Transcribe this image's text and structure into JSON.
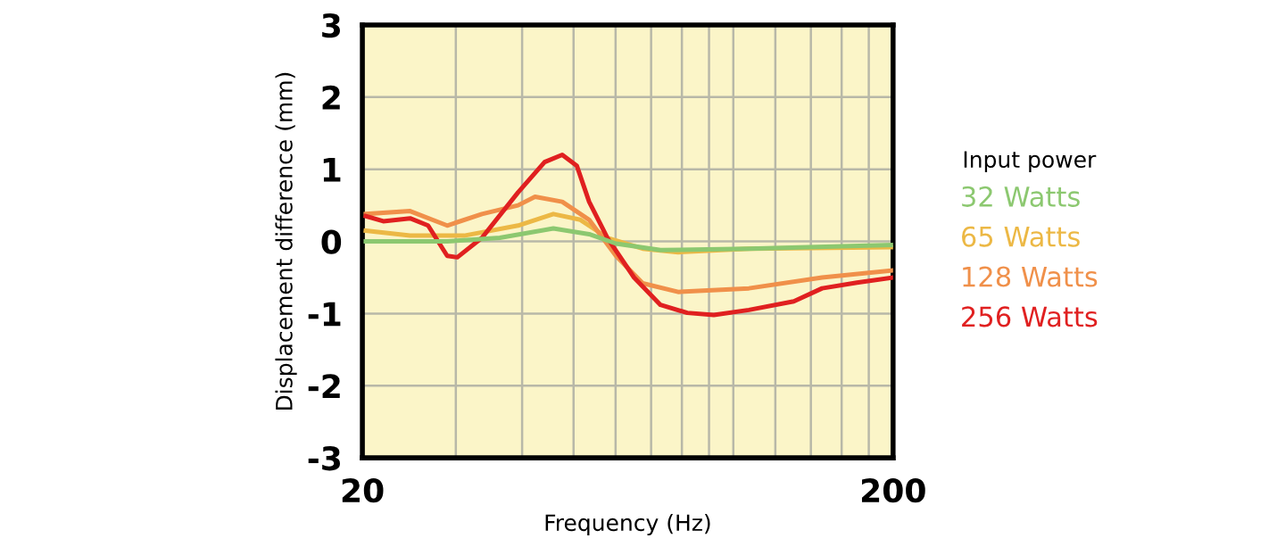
{
  "chart_data": {
    "type": "line",
    "xlabel": "Frequency (Hz)",
    "ylabel": "Displacement difference (mm)",
    "legend_title": "Input power",
    "legend": "right",
    "log": "x",
    "grid": true,
    "marker": "none",
    "line_style": "solid",
    "xlim": [
      20,
      200
    ],
    "xticks": [
      20,
      {
        "value": 30,
        "label": null
      },
      {
        "value": 40,
        "label": null
      },
      {
        "value": 50,
        "label": null
      },
      {
        "value": 60,
        "label": null
      },
      {
        "value": 70,
        "label": null
      },
      {
        "value": 80,
        "label": null
      },
      {
        "value": 90,
        "label": null
      },
      {
        "value": 100,
        "label": null
      },
      {
        "value": 120,
        "label": null
      },
      {
        "value": 140,
        "label": null
      },
      {
        "value": 160,
        "label": null
      },
      {
        "value": 180,
        "label": null
      },
      200
    ],
    "ylim": [
      -3,
      3
    ],
    "yticks": [
      -3,
      -2,
      -1,
      0,
      1,
      2,
      3
    ],
    "series": [
      {
        "name": "32 Watts",
        "color": "#8cc870",
        "x": [
          20.3,
          28.9,
          36.3,
          45.8,
          53.5,
          60.1,
          72.9,
          107,
          200
        ],
        "values": [
          0,
          0,
          0.05,
          0.18,
          0.1,
          -0.03,
          -0.12,
          -0.1,
          -0.05
        ]
      },
      {
        "name": "65 Watts",
        "color": "#ecb845",
        "x": [
          20.3,
          24.6,
          31.1,
          39.3,
          45.8,
          51.5,
          57.9,
          67.5,
          78.7,
          107,
          200
        ],
        "values": [
          0.15,
          0.08,
          0.08,
          0.22,
          0.38,
          0.3,
          0.05,
          -0.1,
          -0.15,
          -0.1,
          -0.08
        ]
      },
      {
        "name": "128 Watts",
        "color": "#f0904a",
        "x": [
          20.3,
          24.6,
          28.9,
          33.6,
          39.3,
          42.3,
          47.6,
          53.5,
          60.1,
          67.5,
          78.7,
          107,
          147,
          200
        ],
        "values": [
          0.38,
          0.42,
          0.22,
          0.38,
          0.5,
          0.62,
          0.55,
          0.3,
          -0.2,
          -0.58,
          -0.7,
          -0.65,
          -0.5,
          -0.4
        ]
      },
      {
        "name": "256 Watts",
        "color": "#e02020",
        "x": [
          20.3,
          21.9,
          24.6,
          26.6,
          28.9,
          30.2,
          33.6,
          39.3,
          44.1,
          47.6,
          50.7,
          53.5,
          57.9,
          65,
          72.9,
          81.9,
          91.9,
          107,
          130,
          147,
          171,
          200
        ],
        "values": [
          0.35,
          0.28,
          0.32,
          0.22,
          -0.2,
          -0.22,
          0.05,
          0.68,
          1.1,
          1.2,
          1.05,
          0.55,
          0.05,
          -0.5,
          -0.88,
          -0.99,
          -1.02,
          -0.95,
          -0.83,
          -0.65,
          -0.57,
          -0.5
        ]
      }
    ]
  }
}
